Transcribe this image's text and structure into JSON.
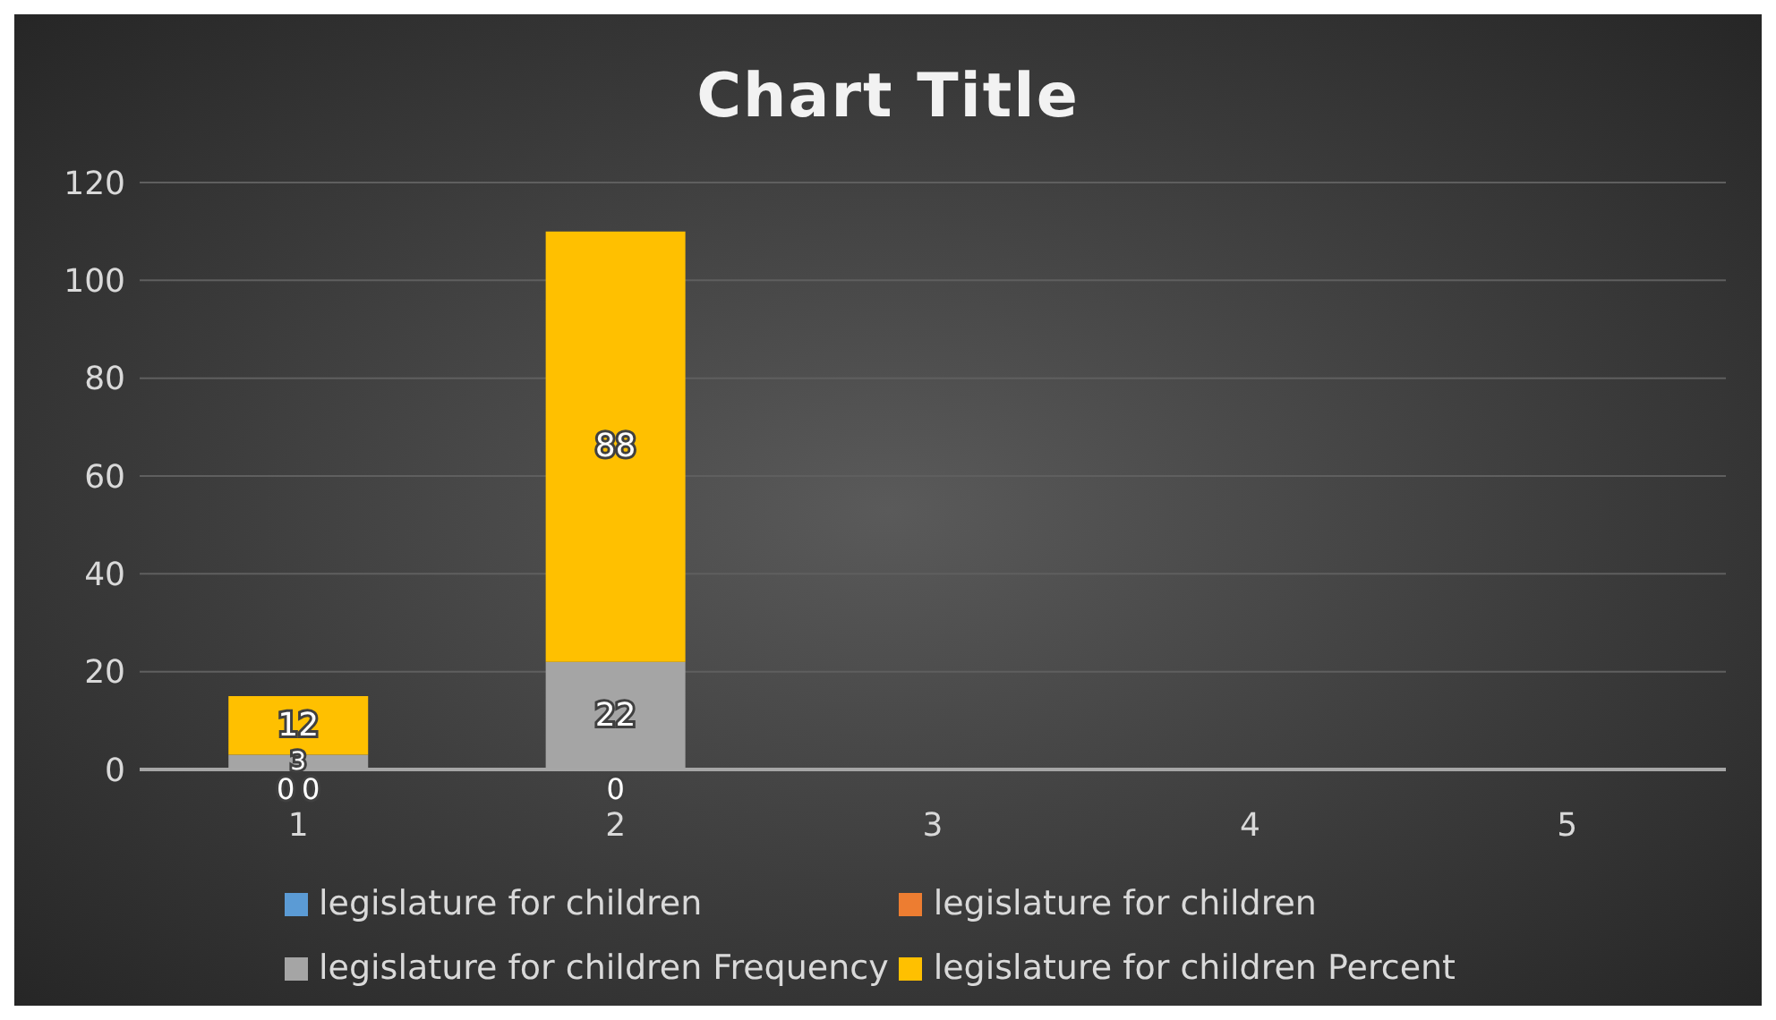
{
  "chart_data": {
    "type": "bar",
    "title": "Chart Title",
    "categories": [
      "1",
      "2",
      "3",
      "4",
      "5"
    ],
    "stacked": true,
    "grid": "y",
    "legend": "bottom",
    "ylim": [
      0,
      120
    ],
    "yticks": [
      0,
      20,
      40,
      60,
      80,
      100,
      120
    ],
    "series": [
      {
        "name": "legislature for children",
        "color": "#5b9bd5",
        "values": [
          0,
          0,
          null,
          null,
          null
        ],
        "value_labels": [
          "0",
          "0",
          null,
          null,
          null
        ]
      },
      {
        "name": "legislature for children",
        "color": "#ed7d31",
        "values": [
          0,
          0,
          null,
          null,
          null
        ],
        "value_labels": [
          "0",
          null,
          null,
          null,
          null
        ]
      },
      {
        "name": "legislature for children Frequency",
        "color": "#a5a5a5",
        "values": [
          3,
          22,
          null,
          null,
          null
        ],
        "value_labels": [
          "3",
          "22",
          null,
          null,
          null
        ]
      },
      {
        "name": "legislature for children Percent",
        "color": "#ffc000",
        "values": [
          12,
          88,
          null,
          null,
          null
        ],
        "value_labels": [
          "12",
          "88",
          null,
          null,
          null
        ]
      }
    ]
  }
}
